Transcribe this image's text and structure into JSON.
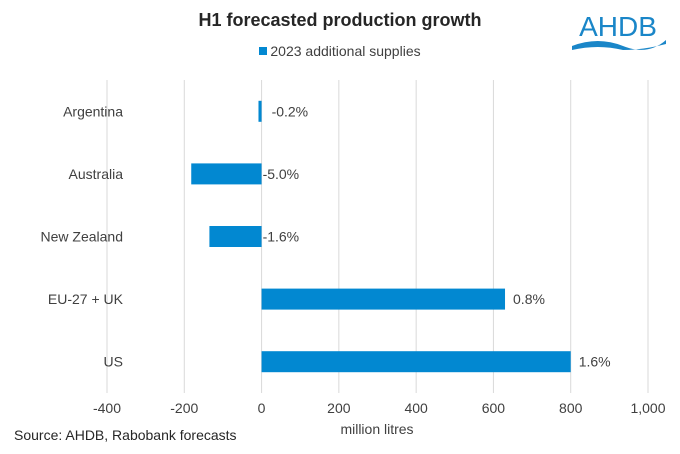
{
  "chart_data": {
    "type": "bar",
    "orientation": "horizontal",
    "title": "H1 forecasted production growth",
    "categories": [
      "Argentina",
      "Australia",
      "New Zealand",
      "EU-27 + UK",
      "US"
    ],
    "series": [
      {
        "name": "2023 additional supplies",
        "color": "#0288d1",
        "values": [
          -8,
          -182,
          -135,
          630,
          800
        ],
        "data_labels": [
          "-0.2%",
          "-5.0%",
          "-1.6%",
          "0.8%",
          "1.6%"
        ]
      }
    ],
    "xlabel": "million litres",
    "ylabel": "",
    "xlim": [
      -400,
      1000
    ],
    "xticks": [
      -400,
      -200,
      0,
      200,
      400,
      600,
      800,
      1000
    ],
    "xtick_labels": [
      "-400",
      "-200",
      "0",
      "200",
      "400",
      "600",
      "800",
      "1,000"
    ],
    "grid": true,
    "legend": "top-center"
  },
  "logo_text": "AHDB",
  "source": "Source: AHDB,  Rabobank forecasts"
}
